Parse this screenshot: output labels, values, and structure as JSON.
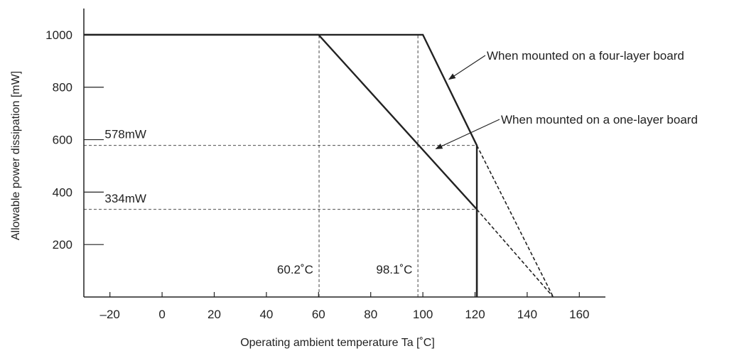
{
  "chart_data": {
    "type": "line",
    "title": "",
    "xlabel": "Operating ambient temperature Ta [˚C]",
    "ylabel": "Allowable power dissipation [mW]",
    "xlim": [
      -30,
      170
    ],
    "ylim": [
      0,
      1100
    ],
    "x_ticks": [
      -20,
      0,
      20,
      40,
      60,
      80,
      100,
      120,
      140,
      160
    ],
    "x_tick_labels": [
      "–20",
      "0",
      "20",
      "40",
      "60",
      "80",
      "100",
      "120",
      "140",
      "160"
    ],
    "y_ticks": [
      200,
      400,
      600,
      800,
      1000
    ],
    "y_tick_labels": [
      "200",
      "400",
      "600",
      "800",
      "1000"
    ],
    "grid": false,
    "series": [
      {
        "name": "When mounted on a four-layer board",
        "points": [
          [
            -30,
            1000
          ],
          [
            100,
            1000
          ],
          [
            120.7,
            578
          ],
          [
            120.7,
            0
          ]
        ],
        "extrapolated": [
          [
            120.7,
            578
          ],
          [
            150,
            0
          ]
        ]
      },
      {
        "name": "When mounted on a one-layer board",
        "points": [
          [
            -30,
            1000
          ],
          [
            60,
            1000
          ],
          [
            120.7,
            334
          ],
          [
            120.7,
            0
          ]
        ],
        "extrapolated": [
          [
            120.7,
            334
          ],
          [
            150,
            0
          ]
        ]
      }
    ],
    "reference_lines": [
      {
        "orientation": "horizontal",
        "value": 578,
        "x_from": -30,
        "x_to": 120.7
      },
      {
        "orientation": "horizontal",
        "value": 334,
        "x_from": -30,
        "x_to": 120.7
      },
      {
        "orientation": "vertical",
        "value": 60.2,
        "y_from": 0,
        "y_to": 1000
      },
      {
        "orientation": "vertical",
        "value": 98.1,
        "y_from": 0,
        "y_to": 1000
      }
    ],
    "annotations": [
      {
        "text": "578mW",
        "x": -22,
        "y": 605
      },
      {
        "text": "334mW",
        "x": -22,
        "y": 360
      },
      {
        "text": "60.2˚C",
        "x": 58,
        "y": 90,
        "anchor": "end"
      },
      {
        "text": "98.1˚C",
        "x": 96,
        "y": 90,
        "anchor": "end"
      }
    ],
    "callouts": [
      {
        "text": "When mounted on a four-layer board",
        "target": [
          110,
          830
        ]
      },
      {
        "text": "When mounted on a one-layer board",
        "target": [
          105,
          565
        ]
      }
    ]
  }
}
